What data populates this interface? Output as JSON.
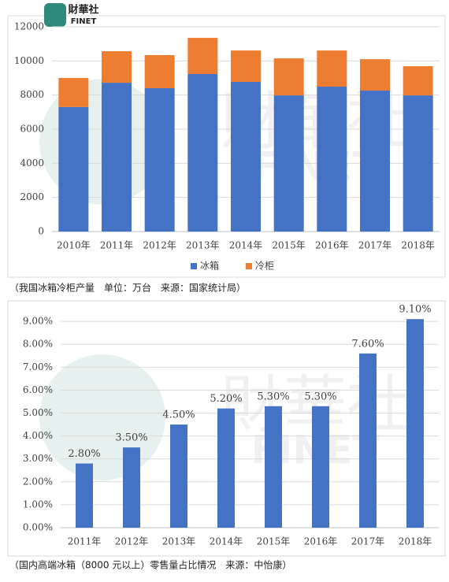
{
  "logo": {
    "text": "財華社",
    "subtext": "FINET"
  },
  "chart_data": [
    {
      "type": "bar",
      "stacked": true,
      "categories": [
        "2010年",
        "2011年",
        "2012年",
        "2013年",
        "2014年",
        "2015年",
        "2016年",
        "2017年",
        "2018年"
      ],
      "series": [
        {
          "name": "冰箱",
          "color": "#4472c4",
          "values": [
            7300,
            8720,
            8400,
            9230,
            8770,
            7980,
            8490,
            8260,
            7980
          ]
        },
        {
          "name": "冷柜",
          "color": "#ed7d31",
          "values": [
            1700,
            1850,
            1940,
            2120,
            1840,
            2170,
            2120,
            1840,
            1710
          ]
        }
      ],
      "ylim": [
        0,
        12000
      ],
      "yticks": [
        0,
        2000,
        4000,
        6000,
        8000,
        10000,
        12000
      ],
      "legend": "bottom",
      "caption": "（我国冰箱冷柜产量　单位：万台　来源：国家统计局）"
    },
    {
      "type": "bar",
      "categories": [
        "2011年",
        "2012年",
        "2013年",
        "2014年",
        "2015年",
        "2016年",
        "2017年",
        "2018年"
      ],
      "values": [
        2.8,
        3.5,
        4.5,
        5.2,
        5.3,
        5.3,
        7.6,
        9.1
      ],
      "value_labels": [
        "2.80%",
        "3.50%",
        "4.50%",
        "5.20%",
        "5.30%",
        "5.30%",
        "7.60%",
        "9.10%"
      ],
      "color": "#4472c4",
      "ylim": [
        0,
        10
      ],
      "yticks": [
        {
          "value": 0,
          "label": "0.00%"
        },
        {
          "value": 1,
          "label": "1.00%"
        },
        {
          "value": 2,
          "label": "2.00%"
        },
        {
          "value": 3,
          "label": "3.00%"
        },
        {
          "value": 4,
          "label": "4.00%"
        },
        {
          "value": 5,
          "label": "5.00%"
        },
        {
          "value": 6,
          "label": "6.00%"
        },
        {
          "value": 7,
          "label": "7.00%"
        },
        {
          "value": 8,
          "label": "8.00%"
        },
        {
          "value": 9,
          "label": "9.00%"
        }
      ],
      "caption": "（国内高端冰箱（8000 元以上）零售量占比情况　来源：中怡康）"
    }
  ]
}
